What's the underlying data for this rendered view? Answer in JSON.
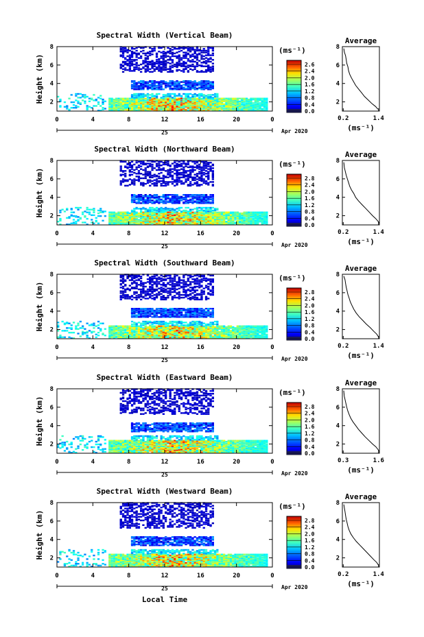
{
  "chart_data": [
    {
      "type": "heatmap",
      "title": "Spectral Width (Vertical Beam)",
      "ylabel": "Height (km)",
      "xticks": [
        "0",
        "4",
        "8",
        "12",
        "16",
        "20",
        "0"
      ],
      "yticks": [
        "2",
        "4",
        "6",
        "8"
      ],
      "xlim": [
        0,
        24
      ],
      "ylim": [
        1,
        8
      ],
      "date_label": "Apr 2020",
      "day_label": "25",
      "colorbar": {
        "unit": "(ms⁻¹)",
        "ticks": [
          "2.6",
          "2.4",
          "2.0",
          "1.6",
          "1.2",
          "0.8",
          "0.4",
          "0.0"
        ]
      },
      "profile": {
        "title": "Average",
        "xticks": [
          "0.2",
          "1.4"
        ],
        "xlabel": "(ms⁻¹)",
        "yticks": [
          "2",
          "4",
          "6",
          "8"
        ],
        "points": [
          [
            0.22,
            7.8
          ],
          [
            0.24,
            7.4
          ],
          [
            0.28,
            7.0
          ],
          [
            0.3,
            6.6
          ],
          [
            0.32,
            6.2
          ],
          [
            0.36,
            5.8
          ],
          [
            0.38,
            5.4
          ],
          [
            0.42,
            5.0
          ],
          [
            0.48,
            4.6
          ],
          [
            0.55,
            4.2
          ],
          [
            0.62,
            3.8
          ],
          [
            0.72,
            3.4
          ],
          [
            0.82,
            3.0
          ],
          [
            0.92,
            2.6
          ],
          [
            1.05,
            2.2
          ],
          [
            1.18,
            1.8
          ],
          [
            1.3,
            1.5
          ],
          [
            1.38,
            1.2
          ]
        ]
      }
    },
    {
      "type": "heatmap",
      "title": "Spectral Width (Northward Beam)",
      "ylabel": "Height (km)",
      "xticks": [
        "0",
        "4",
        "8",
        "12",
        "16",
        "20",
        "0"
      ],
      "yticks": [
        "2",
        "4",
        "6",
        "8"
      ],
      "xlim": [
        0,
        24
      ],
      "ylim": [
        1,
        8
      ],
      "date_label": "Apr 2020",
      "day_label": "25",
      "colorbar": {
        "unit": "(ms⁻¹)",
        "ticks": [
          "2.8",
          "2.4",
          "2.0",
          "1.6",
          "1.2",
          "0.8",
          "0.4",
          "0.0"
        ]
      },
      "profile": {
        "title": "Average",
        "xticks": [
          "0.2",
          "1.4"
        ],
        "xlabel": "(ms⁻¹)",
        "yticks": [
          "2",
          "4",
          "6",
          "8"
        ],
        "points": [
          [
            0.22,
            7.8
          ],
          [
            0.24,
            7.2
          ],
          [
            0.27,
            6.8
          ],
          [
            0.3,
            6.4
          ],
          [
            0.34,
            6.0
          ],
          [
            0.38,
            5.6
          ],
          [
            0.42,
            5.2
          ],
          [
            0.48,
            4.8
          ],
          [
            0.56,
            4.4
          ],
          [
            0.62,
            4.0
          ],
          [
            0.72,
            3.6
          ],
          [
            0.84,
            3.2
          ],
          [
            0.96,
            2.8
          ],
          [
            1.08,
            2.4
          ],
          [
            1.2,
            2.0
          ],
          [
            1.3,
            1.7
          ],
          [
            1.38,
            1.4
          ],
          [
            1.42,
            1.2
          ]
        ]
      }
    },
    {
      "type": "heatmap",
      "title": "Spectral Width (Southward Beam)",
      "ylabel": "Height (km)",
      "xticks": [
        "0",
        "4",
        "8",
        "12",
        "16",
        "20",
        "0"
      ],
      "yticks": [
        "2",
        "4",
        "6",
        "8"
      ],
      "xlim": [
        0,
        24
      ],
      "ylim": [
        1,
        8
      ],
      "date_label": "Apr 2020",
      "day_label": "25",
      "colorbar": {
        "unit": "(ms⁻¹)",
        "ticks": [
          "2.8",
          "2.4",
          "2.0",
          "1.6",
          "1.2",
          "0.8",
          "0.4",
          "0.0"
        ]
      },
      "profile": {
        "title": "Average",
        "xticks": [
          "0.2",
          "1.4"
        ],
        "xlabel": "(ms⁻¹)",
        "yticks": [
          "2",
          "4",
          "6",
          "8"
        ],
        "points": [
          [
            0.22,
            7.8
          ],
          [
            0.26,
            7.4
          ],
          [
            0.28,
            7.0
          ],
          [
            0.3,
            6.6
          ],
          [
            0.33,
            6.2
          ],
          [
            0.36,
            5.8
          ],
          [
            0.4,
            5.4
          ],
          [
            0.44,
            5.0
          ],
          [
            0.5,
            4.6
          ],
          [
            0.56,
            4.2
          ],
          [
            0.64,
            3.8
          ],
          [
            0.74,
            3.4
          ],
          [
            0.86,
            3.0
          ],
          [
            0.98,
            2.6
          ],
          [
            1.12,
            2.2
          ],
          [
            1.24,
            1.8
          ],
          [
            1.34,
            1.5
          ],
          [
            1.4,
            1.2
          ]
        ]
      }
    },
    {
      "type": "heatmap",
      "title": "Spectral Width (Eastward Beam)",
      "ylabel": "Height (km)",
      "xticks": [
        "0",
        "4",
        "8",
        "12",
        "16",
        "20",
        "0"
      ],
      "yticks": [
        "2",
        "4",
        "6",
        "8"
      ],
      "xlim": [
        0,
        24
      ],
      "ylim": [
        1,
        8
      ],
      "date_label": "Apr 2020",
      "day_label": "25",
      "colorbar": {
        "unit": "(ms⁻¹)",
        "ticks": [
          "2.8",
          "2.4",
          "2.0",
          "1.6",
          "1.2",
          "0.8",
          "0.4",
          "0.0"
        ]
      },
      "profile": {
        "title": "Average",
        "xticks": [
          "0.3",
          "1.6"
        ],
        "xlabel": "(ms⁻¹)",
        "yticks": [
          "2",
          "4",
          "6",
          "8"
        ],
        "points": [
          [
            0.32,
            7.8
          ],
          [
            0.34,
            7.2
          ],
          [
            0.37,
            6.8
          ],
          [
            0.4,
            6.4
          ],
          [
            0.43,
            6.0
          ],
          [
            0.47,
            5.6
          ],
          [
            0.52,
            5.2
          ],
          [
            0.58,
            4.8
          ],
          [
            0.66,
            4.4
          ],
          [
            0.76,
            4.0
          ],
          [
            0.86,
            3.6
          ],
          [
            0.98,
            3.2
          ],
          [
            1.1,
            2.8
          ],
          [
            1.24,
            2.4
          ],
          [
            1.38,
            2.0
          ],
          [
            1.5,
            1.7
          ],
          [
            1.58,
            1.4
          ],
          [
            1.62,
            1.2
          ]
        ]
      }
    },
    {
      "type": "heatmap",
      "title": "Spectral Width (Westward Beam)",
      "ylabel": "Height (km)",
      "xticks": [
        "0",
        "4",
        "8",
        "12",
        "16",
        "20",
        "0"
      ],
      "yticks": [
        "2",
        "4",
        "6",
        "8"
      ],
      "xlim": [
        0,
        24
      ],
      "ylim": [
        1,
        8
      ],
      "date_label": "Apr 2020",
      "day_label": "25",
      "xlabel": "Local Time",
      "colorbar": {
        "unit": "(ms⁻¹)",
        "ticks": [
          "2.8",
          "2.4",
          "2.0",
          "1.6",
          "1.2",
          "0.8",
          "0.4",
          "0.0"
        ]
      },
      "profile": {
        "title": "Average",
        "xticks": [
          "0.2",
          "1.4"
        ],
        "xlabel": "(ms⁻¹)",
        "yticks": [
          "2",
          "4",
          "6",
          "8"
        ],
        "points": [
          [
            0.22,
            7.8
          ],
          [
            0.24,
            7.4
          ],
          [
            0.26,
            7.0
          ],
          [
            0.28,
            6.6
          ],
          [
            0.3,
            6.2
          ],
          [
            0.33,
            5.8
          ],
          [
            0.36,
            5.4
          ],
          [
            0.4,
            5.0
          ],
          [
            0.46,
            4.6
          ],
          [
            0.54,
            4.2
          ],
          [
            0.64,
            3.8
          ],
          [
            0.76,
            3.4
          ],
          [
            0.88,
            3.0
          ],
          [
            1.0,
            2.6
          ],
          [
            1.12,
            2.2
          ],
          [
            1.24,
            1.8
          ],
          [
            1.34,
            1.5
          ],
          [
            1.4,
            1.2
          ]
        ]
      }
    }
  ]
}
